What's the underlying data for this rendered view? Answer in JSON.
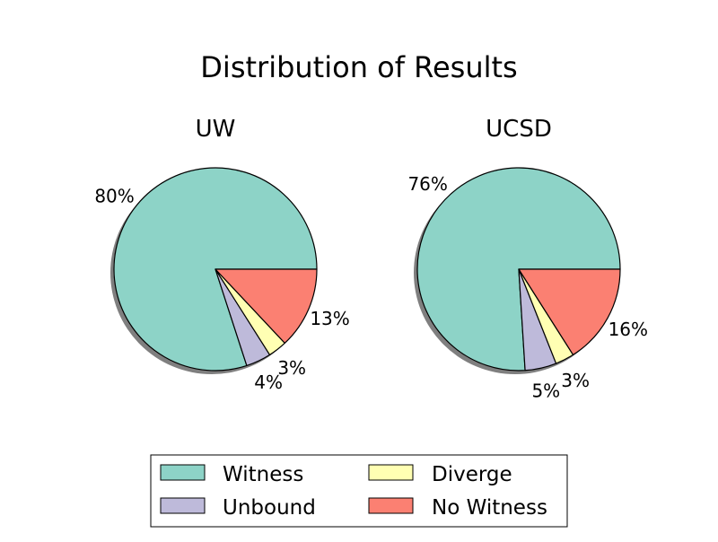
{
  "figure": {
    "title": "Distribution of Results"
  },
  "legend": {
    "placement": "bottom-center",
    "columns": 2,
    "entries": [
      {
        "label": "Witness",
        "color": "#8dd3c7"
      },
      {
        "label": "Unbound",
        "color": "#bebada"
      },
      {
        "label": "Diverge",
        "color": "#ffffb3"
      },
      {
        "label": "No Witness",
        "color": "#fb8072"
      }
    ]
  },
  "chart_data": [
    {
      "type": "pie",
      "title": "UW",
      "shadow": true,
      "slices": [
        {
          "label": "Witness",
          "value": 80,
          "text": "80%"
        },
        {
          "label": "Unbound",
          "value": 4,
          "text": "4%"
        },
        {
          "label": "Diverge",
          "value": 3,
          "text": "3%"
        },
        {
          "label": "No Witness",
          "value": 13,
          "text": "13%"
        }
      ]
    },
    {
      "type": "pie",
      "title": "UCSD",
      "shadow": true,
      "slices": [
        {
          "label": "Witness",
          "value": 76,
          "text": "76%"
        },
        {
          "label": "Unbound",
          "value": 5,
          "text": "5%"
        },
        {
          "label": "Diverge",
          "value": 3,
          "text": "3%"
        },
        {
          "label": "No Witness",
          "value": 16,
          "text": "16%"
        }
      ]
    }
  ]
}
